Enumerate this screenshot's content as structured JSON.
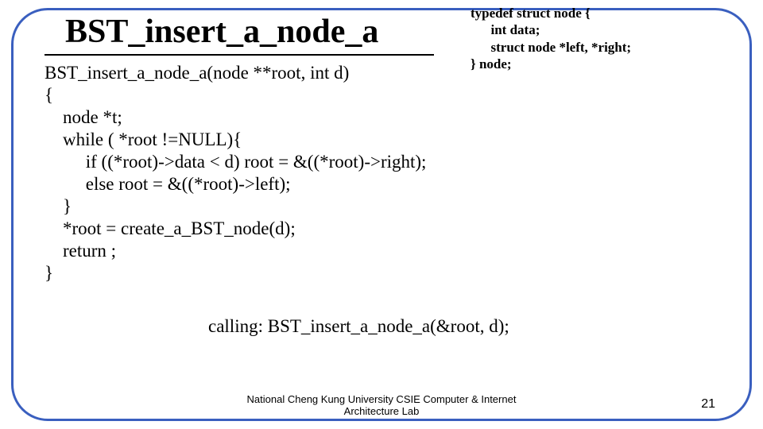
{
  "title": "BST_insert_a_node_a",
  "typedef": "typedef struct node {\n      int data;\n      struct node *left, *right;\n} node;",
  "code": "BST_insert_a_node_a(node **root, int d)\n{\n    node *t;\n    while ( *root !=NULL){\n         if ((*root)->data < d) root = &((*root)->right);\n         else root = &((*root)->left);\n    }\n    *root = create_a_BST_node(d);\n    return ;\n}",
  "calling": "calling: BST_insert_a_node_a(&root, d);",
  "footer_line1": "National Cheng Kung University CSIE Computer & Internet",
  "footer_line2": "Architecture Lab",
  "page_number": "21",
  "colors": {
    "border": "#3a5fbf",
    "text": "#000000",
    "background": "#ffffff"
  }
}
